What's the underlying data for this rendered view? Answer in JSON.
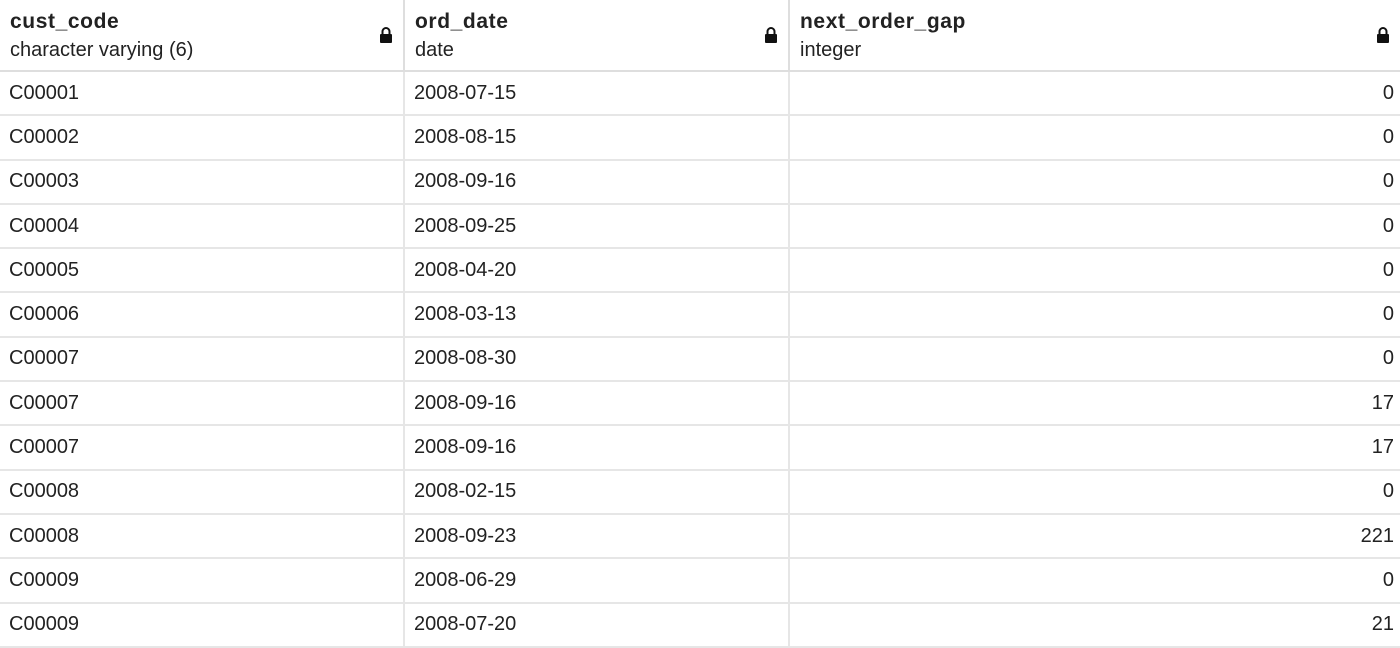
{
  "columns": [
    {
      "name": "cust_code",
      "type": "character varying (6)",
      "lock_icon": "lock-icon"
    },
    {
      "name": "ord_date",
      "type": "date",
      "lock_icon": "lock-icon"
    },
    {
      "name": "next_order_gap",
      "type": "integer",
      "lock_icon": "lock-icon"
    }
  ],
  "rows": [
    [
      "C00001",
      "2008-07-15",
      "0"
    ],
    [
      "C00002",
      "2008-08-15",
      "0"
    ],
    [
      "C00003",
      "2008-09-16",
      "0"
    ],
    [
      "C00004",
      "2008-09-25",
      "0"
    ],
    [
      "C00005",
      "2008-04-20",
      "0"
    ],
    [
      "C00006",
      "2008-03-13",
      "0"
    ],
    [
      "C00007",
      "2008-08-30",
      "0"
    ],
    [
      "C00007",
      "2008-09-16",
      "17"
    ],
    [
      "C00007",
      "2008-09-16",
      "17"
    ],
    [
      "C00008",
      "2008-02-15",
      "0"
    ],
    [
      "C00008",
      "2008-09-23",
      "221"
    ],
    [
      "C00009",
      "2008-06-29",
      "0"
    ],
    [
      "C00009",
      "2008-07-20",
      "21"
    ]
  ]
}
